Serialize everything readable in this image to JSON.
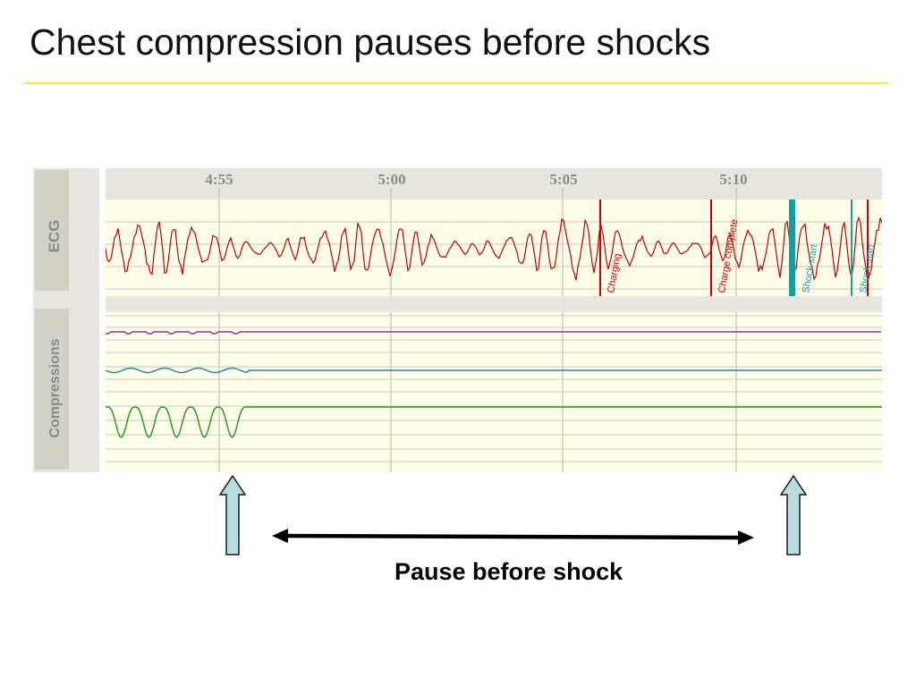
{
  "slide": {
    "title": "Chest compression pauses before shocks",
    "caption": "Pause before shock"
  },
  "labels": {
    "ecg": "ECG",
    "compressions": "Compressions"
  },
  "timeline": {
    "ticks": [
      "4:55",
      "5:00",
      "5:05",
      "5:10"
    ]
  },
  "events": [
    {
      "label": "Charging",
      "color": "#cc0000"
    },
    {
      "label": "Charge complete",
      "color": "#cc0000"
    },
    {
      "label": "Shock start",
      "color": "#1aa0a8"
    },
    {
      "label": "Shock start",
      "color": "#1aa0a8"
    }
  ],
  "colors": {
    "ecg_trace": "#c00000",
    "compression_trace": "#2a9a2a",
    "impedance_trace": "#2a8aa0",
    "purple_trace": "#8a3aa0",
    "arrow_fill": "#b7dde0",
    "title_rule": "#f2ec3c"
  },
  "icons": [
    "up-arrow-icon",
    "up-arrow-icon",
    "double-headed-arrow-icon"
  ]
}
